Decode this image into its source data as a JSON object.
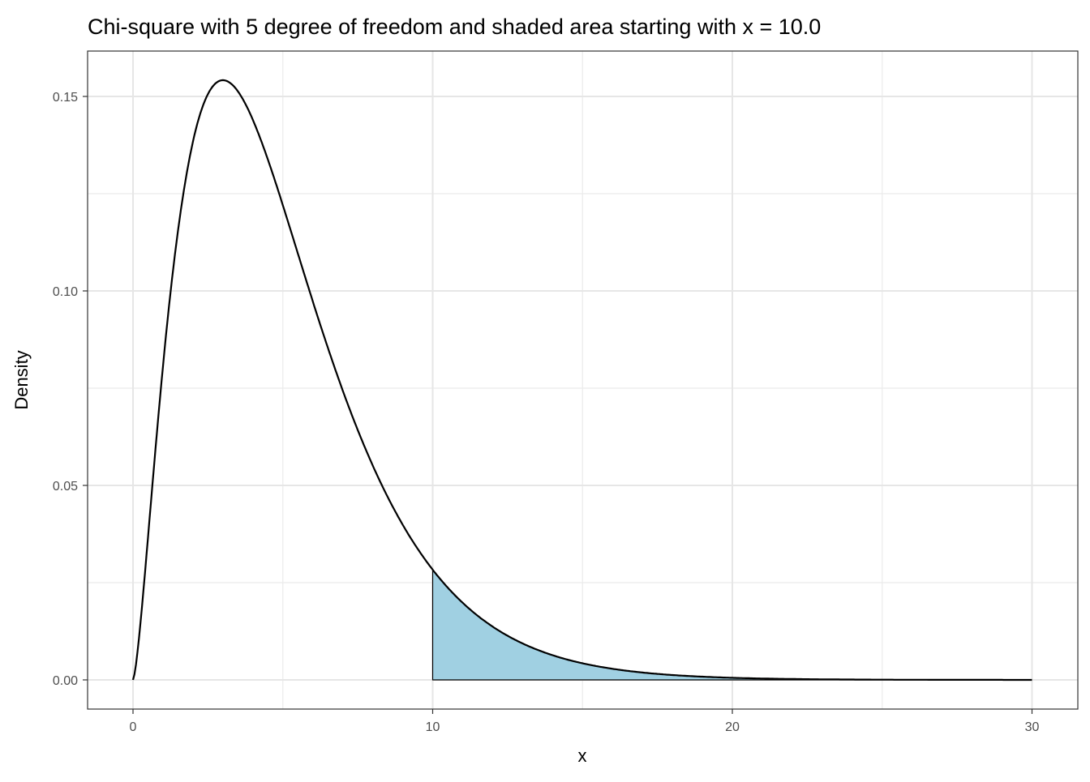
{
  "chart_data": {
    "type": "area",
    "title": "Chi-square with 5 degree of freedom and shaded area starting with x = 10.0",
    "xlabel": "x",
    "ylabel": "Density",
    "df": 5,
    "shade_from": 10,
    "xlim": [
      0,
      30
    ],
    "ylim": [
      0,
      0.154
    ],
    "x_ticks": [
      "0",
      "10",
      "20",
      "30"
    ],
    "y_ticks": [
      "0.00",
      "0.05",
      "0.10",
      "0.15"
    ],
    "grid": true,
    "shade_color": "#a0d0e2",
    "line_color": "#000000",
    "points": {
      "x": [
        0,
        1,
        2,
        3,
        4,
        5,
        6,
        7,
        8,
        9,
        10,
        12,
        14,
        16,
        18,
        20,
        25,
        30
      ],
      "y": [
        0,
        0.0807,
        0.1384,
        0.1542,
        0.144,
        0.122,
        0.0973,
        0.0744,
        0.0551,
        0.0399,
        0.0283,
        0.0137,
        0.0064,
        0.0029,
        0.0013,
        0.0005,
        0.0001,
        0.0
      ]
    }
  }
}
